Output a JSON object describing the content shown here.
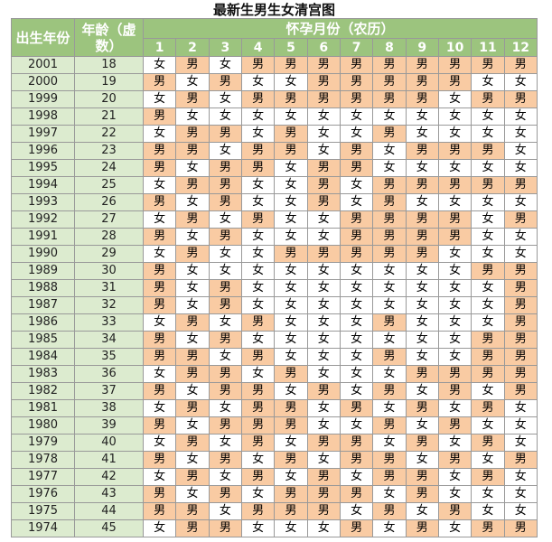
{
  "title": "最新生男生女清宫图",
  "header": {
    "year": "出生年份",
    "age": "年龄（虚数）",
    "month_group": "怀孕月份（农历）",
    "months": [
      "1",
      "2",
      "3",
      "4",
      "5",
      "6",
      "7",
      "8",
      "9",
      "10",
      "11",
      "12"
    ]
  },
  "cell_colors": {
    "男": "#f9cba3",
    "女": "#ffffff"
  },
  "rows": [
    [
      "2001",
      "18",
      [
        "女",
        "男",
        "女",
        "男",
        "男",
        "男",
        "男",
        "男",
        "男",
        "男",
        "男",
        "男"
      ]
    ],
    [
      "2000",
      "19",
      [
        "男",
        "女",
        "男",
        "女",
        "女",
        "男",
        "男",
        "男",
        "男",
        "男",
        "女",
        "女"
      ]
    ],
    [
      "1999",
      "20",
      [
        "女",
        "男",
        "女",
        "男",
        "男",
        "男",
        "男",
        "男",
        "男",
        "女",
        "男",
        "男"
      ]
    ],
    [
      "1998",
      "21",
      [
        "男",
        "女",
        "女",
        "女",
        "女",
        "女",
        "女",
        "女",
        "女",
        "女",
        "女",
        "女"
      ]
    ],
    [
      "1997",
      "22",
      [
        "女",
        "男",
        "男",
        "女",
        "男",
        "女",
        "女",
        "男",
        "女",
        "女",
        "女",
        "女"
      ]
    ],
    [
      "1996",
      "23",
      [
        "男",
        "男",
        "女",
        "男",
        "男",
        "女",
        "男",
        "女",
        "男",
        "男",
        "男",
        "女"
      ]
    ],
    [
      "1995",
      "24",
      [
        "男",
        "女",
        "男",
        "男",
        "女",
        "男",
        "男",
        "女",
        "女",
        "女",
        "女",
        "女"
      ]
    ],
    [
      "1994",
      "25",
      [
        "女",
        "男",
        "男",
        "女",
        "女",
        "男",
        "女",
        "男",
        "男",
        "男",
        "男",
        "男"
      ]
    ],
    [
      "1993",
      "26",
      [
        "男",
        "女",
        "男",
        "女",
        "女",
        "男",
        "女",
        "男",
        "女",
        "女",
        "女",
        "女"
      ]
    ],
    [
      "1992",
      "27",
      [
        "女",
        "男",
        "女",
        "男",
        "女",
        "女",
        "男",
        "男",
        "男",
        "男",
        "女",
        "男"
      ]
    ],
    [
      "1991",
      "28",
      [
        "男",
        "女",
        "男",
        "女",
        "女",
        "女",
        "男",
        "男",
        "男",
        "男",
        "女",
        "女"
      ]
    ],
    [
      "1990",
      "29",
      [
        "女",
        "男",
        "女",
        "女",
        "男",
        "男",
        "男",
        "男",
        "男",
        "女",
        "女",
        "女"
      ]
    ],
    [
      "1989",
      "30",
      [
        "男",
        "女",
        "女",
        "女",
        "女",
        "女",
        "女",
        "女",
        "女",
        "女",
        "男",
        "男"
      ]
    ],
    [
      "1988",
      "31",
      [
        "男",
        "女",
        "男",
        "女",
        "女",
        "女",
        "女",
        "女",
        "女",
        "女",
        "女",
        "男"
      ]
    ],
    [
      "1987",
      "32",
      [
        "男",
        "女",
        "男",
        "女",
        "女",
        "女",
        "女",
        "女",
        "女",
        "女",
        "女",
        "男"
      ]
    ],
    [
      "1986",
      "33",
      [
        "女",
        "男",
        "女",
        "男",
        "女",
        "女",
        "女",
        "男",
        "女",
        "女",
        "女",
        "男"
      ]
    ],
    [
      "1985",
      "34",
      [
        "男",
        "女",
        "男",
        "女",
        "女",
        "女",
        "女",
        "女",
        "女",
        "女",
        "男",
        "男"
      ]
    ],
    [
      "1984",
      "35",
      [
        "男",
        "男",
        "女",
        "男",
        "女",
        "女",
        "女",
        "男",
        "女",
        "女",
        "男",
        "男"
      ]
    ],
    [
      "1983",
      "36",
      [
        "女",
        "男",
        "男",
        "女",
        "男",
        "女",
        "女",
        "女",
        "男",
        "男",
        "男",
        "男"
      ]
    ],
    [
      "1982",
      "37",
      [
        "男",
        "女",
        "男",
        "男",
        "女",
        "男",
        "女",
        "男",
        "女",
        "男",
        "女",
        "男"
      ]
    ],
    [
      "1981",
      "38",
      [
        "女",
        "男",
        "女",
        "男",
        "男",
        "女",
        "男",
        "女",
        "男",
        "女",
        "男",
        "女"
      ]
    ],
    [
      "1980",
      "39",
      [
        "男",
        "女",
        "男",
        "男",
        "男",
        "女",
        "女",
        "男",
        "女",
        "男",
        "女",
        "女"
      ]
    ],
    [
      "1979",
      "40",
      [
        "女",
        "男",
        "女",
        "男",
        "女",
        "男",
        "男",
        "女",
        "男",
        "女",
        "男",
        "女"
      ]
    ],
    [
      "1978",
      "41",
      [
        "男",
        "女",
        "男",
        "女",
        "男",
        "女",
        "男",
        "男",
        "女",
        "男",
        "女",
        "男"
      ]
    ],
    [
      "1977",
      "42",
      [
        "女",
        "男",
        "女",
        "男",
        "女",
        "男",
        "女",
        "男",
        "男",
        "女",
        "男",
        "女"
      ]
    ],
    [
      "1976",
      "43",
      [
        "男",
        "女",
        "男",
        "女",
        "男",
        "男",
        "男",
        "女",
        "男",
        "女",
        "女",
        "女"
      ]
    ],
    [
      "1975",
      "44",
      [
        "男",
        "男",
        "女",
        "男",
        "男",
        "男",
        "女",
        "男",
        "女",
        "男",
        "女",
        "女"
      ]
    ],
    [
      "1974",
      "45",
      [
        "女",
        "男",
        "男",
        "女",
        "女",
        "女",
        "男",
        "女",
        "男",
        "女",
        "男",
        "男"
      ]
    ]
  ]
}
